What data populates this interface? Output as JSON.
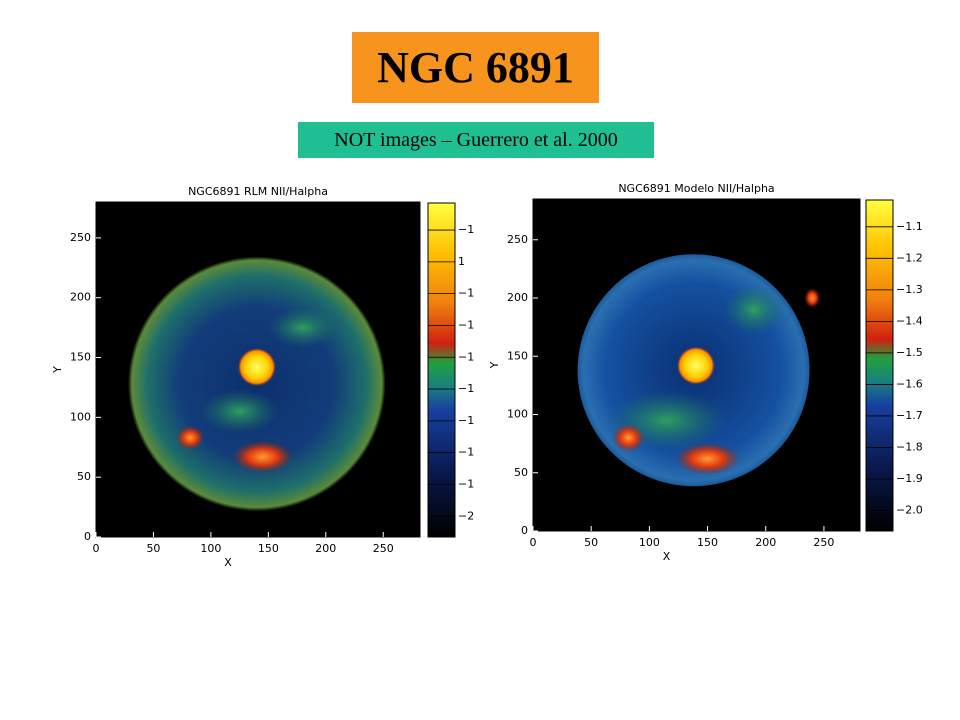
{
  "title": "NGC 6891",
  "subtitle": "NOT images – Guerrero et al. 2000",
  "panels": [
    {
      "title": "NGC6891 RLM NII/Halpha",
      "xlabel": "X",
      "ylabel": "Y",
      "xlim": [
        0,
        282
      ],
      "ylim": [
        0,
        280
      ],
      "xticks": [
        0,
        50,
        100,
        150,
        200,
        250
      ],
      "yticks": [
        0,
        50,
        100,
        150,
        200,
        250
      ],
      "colorbar_labels": [
        "−1",
        "1",
        "−1",
        "−1",
        "−1",
        "−1",
        "−1",
        "−1",
        "−1",
        "−2"
      ]
    },
    {
      "title": "NGC6891 Modelo NII/Halpha",
      "xlabel": "X",
      "ylabel": "Y",
      "xlim": [
        0,
        281
      ],
      "ylim": [
        0,
        285
      ],
      "xticks": [
        0,
        50,
        100,
        150,
        200,
        250
      ],
      "yticks": [
        0,
        50,
        100,
        150,
        200,
        250
      ],
      "colorbar_labels": [
        "−1.1",
        "−1.2",
        "−1.3",
        "−1.4",
        "−1.5",
        "−1.6",
        "−1.7",
        "−1.8",
        "−1.9",
        "−2.0"
      ]
    }
  ]
}
